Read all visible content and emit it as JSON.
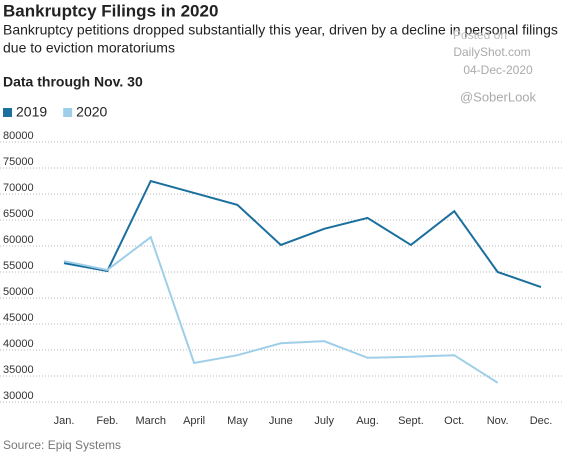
{
  "chart_data": {
    "type": "line",
    "title": "Bankruptcy Filings in 2020",
    "subtitle": [
      "Bankruptcy petitions dropped substantially this year, driven by a decline in personal filings",
      "due to eviction moratoriums"
    ],
    "note": "Data through Nov. 30",
    "watermark": [
      "Posted on",
      "DailyShot.com",
      "04-Dec-2020",
      "@SoberLook"
    ],
    "source": "Source: Epiq Systems",
    "categories": [
      "Jan.",
      "Feb.",
      "March",
      "April",
      "May",
      "June",
      "July",
      "Aug.",
      "Sept.",
      "Oct.",
      "Nov.",
      "Dec."
    ],
    "series": [
      {
        "name": "2019",
        "color": "#1a6f9e",
        "values": [
          56700,
          55200,
          72500,
          70200,
          67900,
          60200,
          63300,
          65400,
          60200,
          66700,
          55000,
          52100
        ]
      },
      {
        "name": "2020",
        "color": "#9fcfe8",
        "values": [
          57100,
          55400,
          61700,
          37500,
          39000,
          41300,
          41700,
          38500,
          38700,
          39000,
          33700,
          null
        ]
      }
    ],
    "ylim": [
      30000,
      80000
    ],
    "yticks": [
      30000,
      35000,
      40000,
      45000,
      50000,
      55000,
      60000,
      65000,
      70000,
      75000,
      80000
    ],
    "grid": true
  }
}
